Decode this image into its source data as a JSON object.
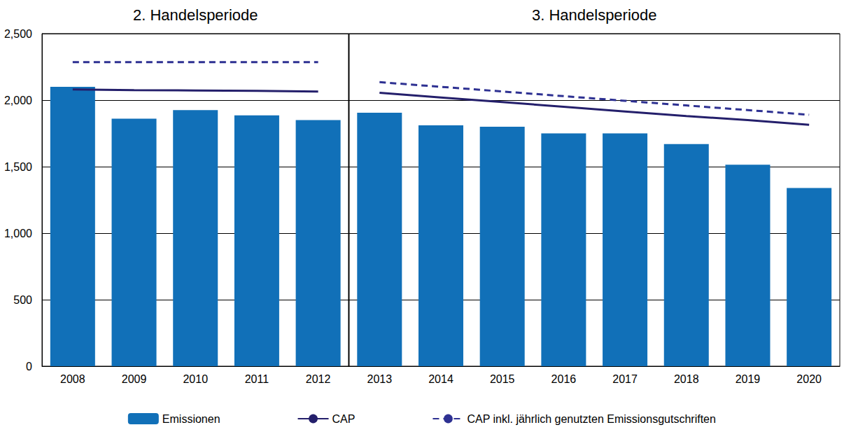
{
  "chart_data": {
    "type": "bar",
    "categories": [
      "2008",
      "2009",
      "2010",
      "2011",
      "2012",
      "2013",
      "2014",
      "2015",
      "2016",
      "2017",
      "2018",
      "2019",
      "2020"
    ],
    "series": [
      {
        "name": "Emissionen",
        "type": "bar",
        "color": "#1170b8",
        "values": [
          2100,
          1860,
          1925,
          1885,
          1850,
          1905,
          1810,
          1800,
          1750,
          1750,
          1670,
          1515,
          1340
        ]
      },
      {
        "name": "CAP",
        "type": "line",
        "color": "#241f6b",
        "line_style": "solid",
        "values": [
          2080,
          2075,
          2073,
          2070,
          2065,
          null,
          null,
          null,
          null,
          null,
          null,
          null,
          null
        ]
      },
      {
        "name": "CAP",
        "type": "line",
        "color": "#241f6b",
        "line_style": "solid",
        "values": [
          null,
          null,
          null,
          null,
          null,
          2055,
          2020,
          1985,
          1950,
          1915,
          1880,
          1850,
          1815
        ]
      },
      {
        "name": "CAP inkl. jährlich genutzten Emissionsgutschriften",
        "type": "line",
        "color": "#2e3192",
        "line_style": "dashed",
        "values": [
          2285,
          2285,
          2285,
          2285,
          2285,
          null,
          null,
          null,
          null,
          null,
          null,
          null,
          null
        ]
      },
      {
        "name": "CAP inkl. jährlich genutzten Emissionsgutschriften",
        "type": "line",
        "color": "#2e3192",
        "line_style": "dashed",
        "values": [
          null,
          null,
          null,
          null,
          null,
          2135,
          2100,
          2065,
          2030,
          1995,
          1960,
          1925,
          1890
        ]
      }
    ],
    "annotations": [
      {
        "text": "2. Handelsperiode",
        "from": "2008",
        "to": "2012"
      },
      {
        "text": "3. Handelsperiode",
        "from": "2013",
        "to": "2020"
      }
    ],
    "ylim": [
      0,
      2500
    ],
    "yticks": [
      0,
      500,
      1000,
      1500,
      2000,
      2500
    ],
    "grid": true,
    "legend": "bottom"
  }
}
